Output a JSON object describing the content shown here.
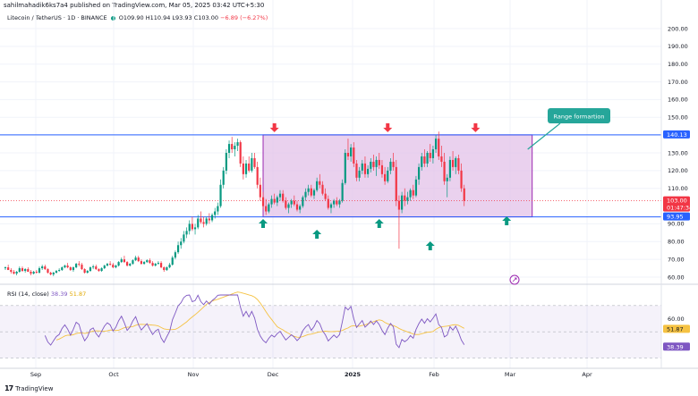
{
  "publisher_line": "sahilmahadik6ks7a4 published on TradingView.com, Mar 05, 2025 03:42 UTC+5:30",
  "symbol": {
    "name": "Litecoin / TetherUS · 1D · BINANCE",
    "open": "O109.90",
    "high": "H110.94",
    "low": "L93.93",
    "close": "C103.00",
    "change": "−6.89 (−6.27%)"
  },
  "rsi_legend": {
    "label": "RSI (14, close)",
    "rsi_value": "38.39",
    "ma_value": "51.87"
  },
  "footer": {
    "brand": "TradingView"
  },
  "colors": {
    "bull": "#089981",
    "bear": "#f23645",
    "range_fill": "#e1bee7",
    "range_border": "#9c27b0",
    "level_line": "#2962ff",
    "callout": "#26a69a",
    "rsi_line": "#7e57c2",
    "rsi_ma": "#f5c242"
  },
  "chart_data": {
    "type": "candlestick",
    "title": "Litecoin / TetherUS · 1D · BINANCE",
    "x_ticks": [
      "Sep",
      "Oct",
      "Nov",
      "Dec",
      "2025",
      "Feb",
      "Mar",
      "Apr"
    ],
    "y_ticks": [
      60.0,
      70.0,
      80.0,
      90.0,
      110.0,
      120.0,
      130.0,
      140.0,
      150.0,
      160.0,
      170.0,
      180.0,
      190.0,
      200.0
    ],
    "ylim": [
      57,
      204
    ],
    "price_labels": {
      "resistance": "140.13",
      "support": "93.95",
      "last_price": "103.00",
      "countdown": "01:47:34"
    },
    "resistance_level": 140.13,
    "support_level": 93.95,
    "annotation": "Range formartion",
    "range_box": {
      "from_day": 91,
      "to_day": 186,
      "low": 93.95,
      "high": 140.13
    },
    "sell_arrows_day": [
      95,
      135,
      166
    ],
    "buy_arrows_day": [
      91,
      110,
      132,
      150,
      177
    ],
    "ohlc": [
      [
        65,
        66,
        64,
        65.5
      ],
      [
        65.5,
        67,
        64.5,
        64
      ],
      [
        64,
        65,
        62,
        63
      ],
      [
        63,
        64,
        61.5,
        62
      ],
      [
        62,
        63.5,
        61,
        63
      ],
      [
        63,
        66,
        62.5,
        65
      ],
      [
        65,
        66,
        63,
        63.5
      ],
      [
        63.5,
        65,
        62.5,
        64.5
      ],
      [
        64.5,
        65.5,
        63,
        63
      ],
      [
        63,
        64,
        61,
        62
      ],
      [
        62,
        63.5,
        61.5,
        63
      ],
      [
        63,
        64,
        62,
        62.5
      ],
      [
        62.5,
        66,
        62,
        65
      ],
      [
        65,
        67,
        64,
        66
      ],
      [
        66,
        67,
        64,
        64.5
      ],
      [
        64.5,
        65,
        62,
        62.5
      ],
      [
        62.5,
        63,
        61,
        61.5
      ],
      [
        61.5,
        63,
        60.5,
        62.5
      ],
      [
        62.5,
        64,
        62,
        63.5
      ],
      [
        63.5,
        65,
        63,
        64
      ],
      [
        64,
        66,
        63.5,
        65.5
      ],
      [
        65.5,
        67,
        65,
        66.5
      ],
      [
        66.5,
        68,
        65,
        65.5
      ],
      [
        65.5,
        66,
        63.5,
        64
      ],
      [
        64,
        66,
        63,
        65.5
      ],
      [
        65.5,
        68,
        65,
        67.5
      ],
      [
        67.5,
        69,
        66,
        67
      ],
      [
        67,
        68,
        64,
        64.5
      ],
      [
        64.5,
        65,
        62,
        62.5
      ],
      [
        62.5,
        64,
        62,
        63.5
      ],
      [
        63.5,
        66,
        63,
        65.5
      ],
      [
        65.5,
        67,
        64.5,
        66
      ],
      [
        66,
        67,
        64,
        64.5
      ],
      [
        64.5,
        65,
        63,
        63.5
      ],
      [
        63.5,
        65.5,
        63,
        65
      ],
      [
        65,
        67,
        64.5,
        66.5
      ],
      [
        66.5,
        68,
        66,
        67.5
      ],
      [
        67.5,
        69,
        66.5,
        67
      ],
      [
        67,
        68,
        65,
        65.5
      ],
      [
        65.5,
        67,
        65,
        66.5
      ],
      [
        66.5,
        69,
        66,
        68.5
      ],
      [
        68.5,
        71,
        68,
        70
      ],
      [
        70,
        72,
        68,
        68.5
      ],
      [
        68.5,
        69,
        66,
        66.5
      ],
      [
        66.5,
        68,
        66,
        67.5
      ],
      [
        67.5,
        70,
        67,
        69.5
      ],
      [
        69.5,
        72,
        69,
        71
      ],
      [
        71,
        72,
        68.5,
        69
      ],
      [
        69,
        70,
        67,
        67.5
      ],
      [
        67.5,
        69,
        67,
        68.5
      ],
      [
        68.5,
        70,
        68,
        69.5
      ],
      [
        69.5,
        70.5,
        67.5,
        68
      ],
      [
        68,
        69,
        66,
        66.5
      ],
      [
        66.5,
        68,
        66,
        67.5
      ],
      [
        67.5,
        69,
        67,
        68
      ],
      [
        68,
        69,
        65,
        65.5
      ],
      [
        65.5,
        66,
        63,
        64
      ],
      [
        64,
        66,
        63.5,
        65.5
      ],
      [
        65.5,
        68,
        65,
        67
      ],
      [
        67,
        72,
        66.5,
        71
      ],
      [
        71,
        75,
        70,
        74
      ],
      [
        74,
        80,
        73,
        78
      ],
      [
        78,
        82,
        76,
        80
      ],
      [
        80,
        86,
        79,
        84
      ],
      [
        84,
        88,
        82,
        86
      ],
      [
        86,
        92,
        84,
        90
      ],
      [
        90,
        94,
        86,
        87
      ],
      [
        87,
        90,
        84,
        88
      ],
      [
        88,
        95,
        87,
        93
      ],
      [
        93,
        97,
        90,
        91
      ],
      [
        91,
        94,
        88,
        90
      ],
      [
        90,
        94,
        89,
        93
      ],
      [
        93,
        96,
        90,
        92
      ],
      [
        92,
        96,
        91,
        95
      ],
      [
        95,
        99,
        93,
        97
      ],
      [
        97,
        102,
        95,
        100
      ],
      [
        100,
        115,
        99,
        112
      ],
      [
        112,
        122,
        110,
        120
      ],
      [
        120,
        132,
        118,
        130
      ],
      [
        130,
        137,
        127,
        135
      ],
      [
        135,
        139,
        130,
        132
      ],
      [
        132,
        136,
        128,
        134
      ],
      [
        134,
        138,
        131,
        136
      ],
      [
        136,
        137,
        122,
        124
      ],
      [
        124,
        128,
        115,
        118
      ],
      [
        118,
        126,
        116,
        124
      ],
      [
        124,
        128,
        119,
        120
      ],
      [
        120,
        130,
        119,
        127
      ],
      [
        127,
        130,
        121,
        122
      ],
      [
        122,
        125,
        110,
        112
      ],
      [
        112,
        116,
        103,
        105
      ],
      [
        105,
        108,
        98,
        100
      ],
      [
        100,
        104,
        95,
        97
      ],
      [
        97,
        102,
        96,
        101
      ],
      [
        101,
        106,
        99,
        104
      ],
      [
        104,
        107,
        101,
        102
      ],
      [
        102,
        106,
        100,
        105
      ],
      [
        105,
        109,
        103,
        107
      ],
      [
        107,
        109,
        102,
        103
      ],
      [
        103,
        105,
        98,
        99
      ],
      [
        99,
        102,
        96,
        101
      ],
      [
        101,
        104,
        99,
        103
      ],
      [
        103,
        106,
        100,
        101
      ],
      [
        101,
        103,
        97,
        98
      ],
      [
        98,
        101,
        96,
        100
      ],
      [
        100,
        106,
        99,
        105
      ],
      [
        105,
        110,
        103,
        108
      ],
      [
        108,
        112,
        106,
        110
      ],
      [
        110,
        112,
        105,
        106
      ],
      [
        106,
        110,
        104,
        109
      ],
      [
        109,
        116,
        108,
        114
      ],
      [
        114,
        118,
        110,
        112
      ],
      [
        112,
        114,
        106,
        107
      ],
      [
        107,
        110,
        103,
        104
      ],
      [
        104,
        106,
        98,
        99
      ],
      [
        99,
        102,
        96,
        101
      ],
      [
        101,
        104,
        99,
        103
      ],
      [
        103,
        105,
        100,
        101
      ],
      [
        101,
        104,
        99,
        103
      ],
      [
        103,
        115,
        102,
        113
      ],
      [
        113,
        132,
        112,
        130
      ],
      [
        130,
        138,
        126,
        128
      ],
      [
        128,
        135,
        125,
        133
      ],
      [
        133,
        136,
        122,
        124
      ],
      [
        124,
        126,
        114,
        116
      ],
      [
        116,
        122,
        114,
        120
      ],
      [
        120,
        126,
        118,
        124
      ],
      [
        124,
        128,
        116,
        118
      ],
      [
        118,
        123,
        116,
        121
      ],
      [
        121,
        127,
        119,
        125
      ],
      [
        125,
        129,
        120,
        122
      ],
      [
        122,
        128,
        117,
        126
      ],
      [
        126,
        130,
        121,
        123
      ],
      [
        123,
        126,
        116,
        118
      ],
      [
        118,
        122,
        112,
        114
      ],
      [
        114,
        122,
        113,
        120
      ],
      [
        120,
        127,
        118,
        125
      ],
      [
        125,
        130,
        120,
        122
      ],
      [
        122,
        126,
        100,
        103
      ],
      [
        103,
        106,
        76,
        98
      ],
      [
        98,
        108,
        96,
        106
      ],
      [
        106,
        110,
        100,
        103
      ],
      [
        103,
        108,
        101,
        105
      ],
      [
        105,
        110,
        103,
        109
      ],
      [
        109,
        112,
        104,
        106
      ],
      [
        106,
        117,
        105,
        115
      ],
      [
        115,
        124,
        112,
        122
      ],
      [
        122,
        130,
        120,
        128
      ],
      [
        128,
        132,
        122,
        124
      ],
      [
        124,
        131,
        122,
        130
      ],
      [
        130,
        135,
        125,
        127
      ],
      [
        127,
        134,
        124,
        132
      ],
      [
        132,
        140,
        130,
        138
      ],
      [
        138,
        142,
        126,
        128
      ],
      [
        128,
        134,
        122,
        125
      ],
      [
        125,
        130,
        112,
        114
      ],
      [
        114,
        118,
        105,
        116
      ],
      [
        116,
        128,
        114,
        126
      ],
      [
        126,
        131,
        120,
        122
      ],
      [
        122,
        128,
        118,
        127
      ],
      [
        127,
        129,
        118,
        120
      ],
      [
        120,
        124,
        108,
        110
      ],
      [
        110,
        112,
        100,
        103
      ]
    ],
    "rsi_ticks": [
      60.0,
      40.0
    ],
    "rsi_ylim": [
      27,
      78
    ],
    "rsi_labels": {
      "ma": "51.87",
      "rsi": "38.39"
    }
  }
}
